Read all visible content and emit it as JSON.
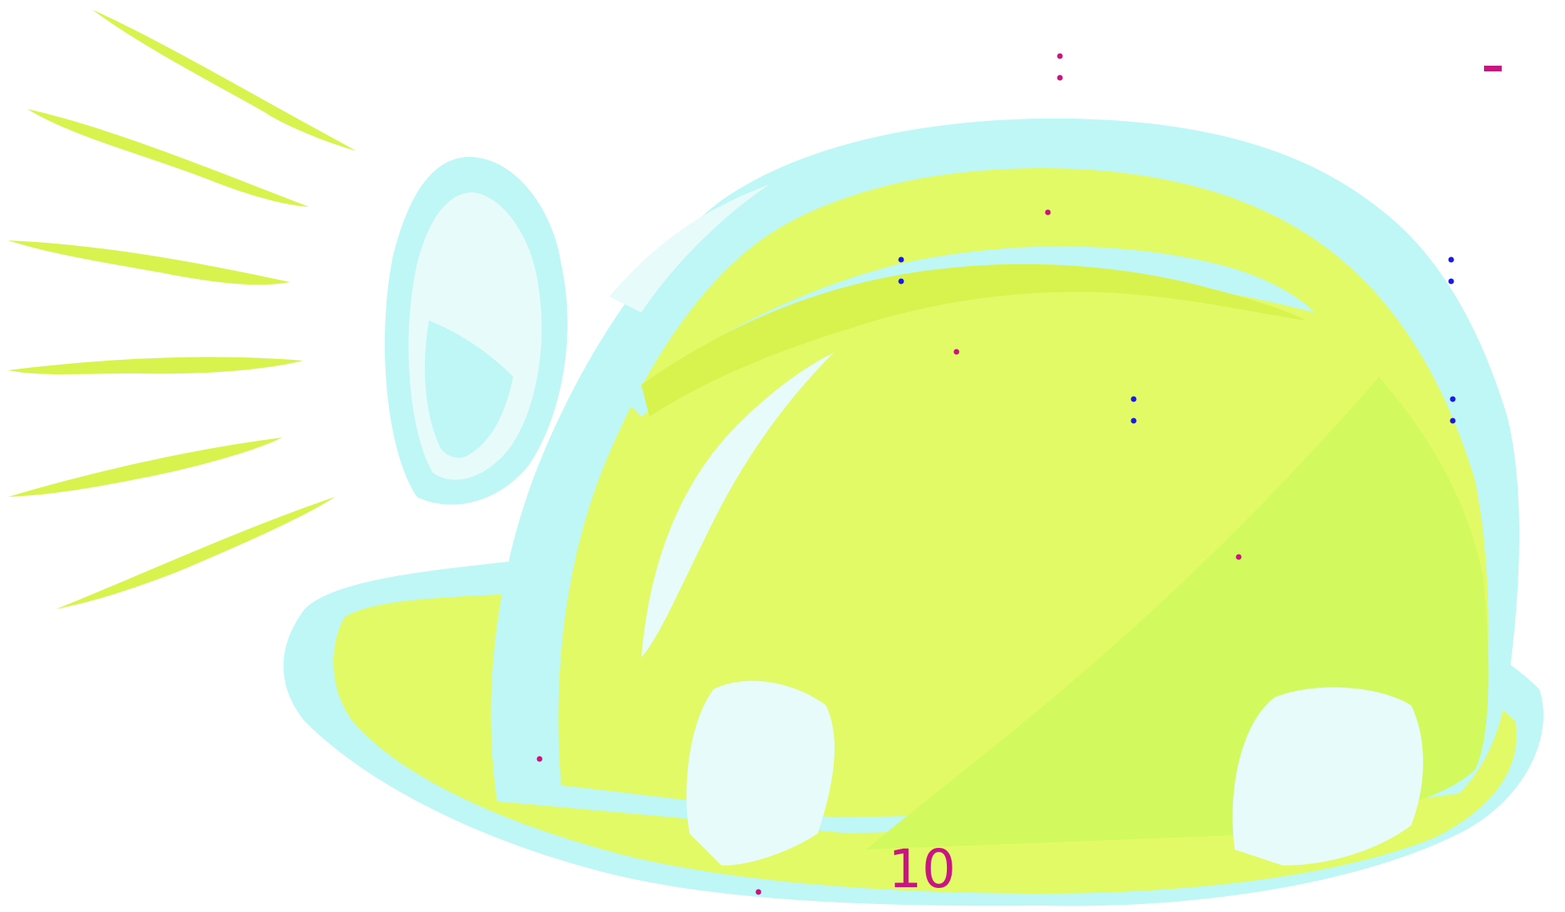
{
  "slide": {
    "page_number": "10"
  },
  "illustration": {
    "subject": "hard-hat-icon",
    "rays": "sun-rays-icon"
  },
  "colors": {
    "hat_yellow": "#e2fa66",
    "hat_yellow_shade": "#d2fa5e",
    "highlight_cyan": "#bff6f6",
    "highlight_pale": "#e6fbfa",
    "rays_yellow": "#d9f34e",
    "dot_pink": "#c8157f",
    "dot_blue": "#1a1ae6"
  }
}
